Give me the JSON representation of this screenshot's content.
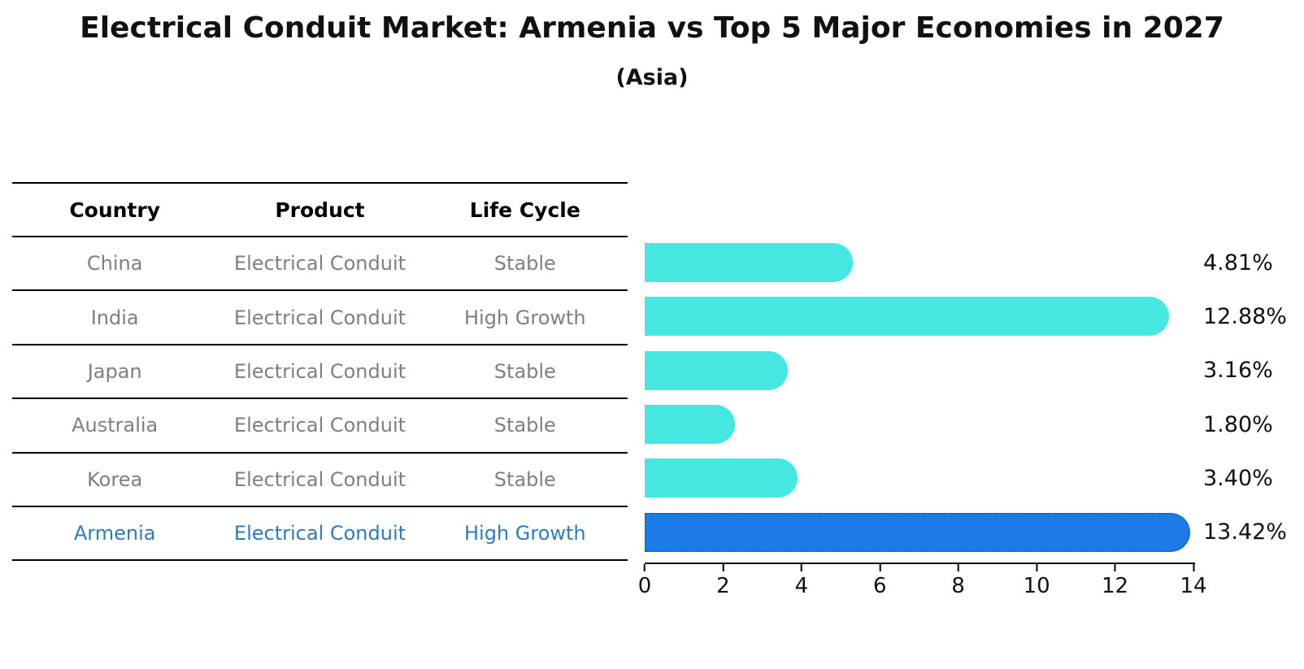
{
  "title": "Electrical Conduit Market: Armenia vs Top 5 Major Economies in 2027",
  "subtitle": "(Asia)",
  "table": {
    "headers": [
      "Country",
      "Product",
      "Life Cycle"
    ],
    "rows": [
      {
        "country": "China",
        "product": "Electrical Conduit",
        "life_cycle": "Stable",
        "highlight": false
      },
      {
        "country": "India",
        "product": "Electrical Conduit",
        "life_cycle": "High Growth",
        "highlight": false
      },
      {
        "country": "Japan",
        "product": "Electrical Conduit",
        "life_cycle": "Stable",
        "highlight": false
      },
      {
        "country": "Australia",
        "product": "Electrical Conduit",
        "life_cycle": "Stable",
        "highlight": false
      },
      {
        "country": "Korea",
        "product": "Electrical Conduit",
        "life_cycle": "Stable",
        "highlight": false
      },
      {
        "country": "Armenia",
        "product": "Electrical Conduit",
        "life_cycle": "High Growth",
        "highlight": true
      }
    ]
  },
  "chart_data": {
    "type": "bar",
    "orientation": "horizontal",
    "title": "Electrical Conduit Market: Armenia vs Top 5 Major Economies in 2027 (Asia)",
    "categories": [
      "China",
      "India",
      "Japan",
      "Australia",
      "Korea",
      "Armenia"
    ],
    "values": [
      4.81,
      12.88,
      3.16,
      1.8,
      3.4,
      13.42
    ],
    "value_labels": [
      "4.81%",
      "12.88%",
      "3.16%",
      "1.80%",
      "3.40%",
      "13.42%"
    ],
    "xlim": [
      0,
      14
    ],
    "x_ticks": [
      0,
      2,
      4,
      6,
      8,
      10,
      12,
      14
    ],
    "grid": false,
    "legend": "none",
    "bar_color": "#47E7E1",
    "highlight_index": 5,
    "highlight_color": "#1B7CE8",
    "highlight_border_color": "#0E62C8"
  },
  "colors": {
    "background": "#FFFFFF",
    "header_text": "#000000",
    "row_text": "#7F7F7F",
    "highlight_text": "#2A7CC4",
    "axis": "#000000",
    "value_text": "#111111"
  }
}
